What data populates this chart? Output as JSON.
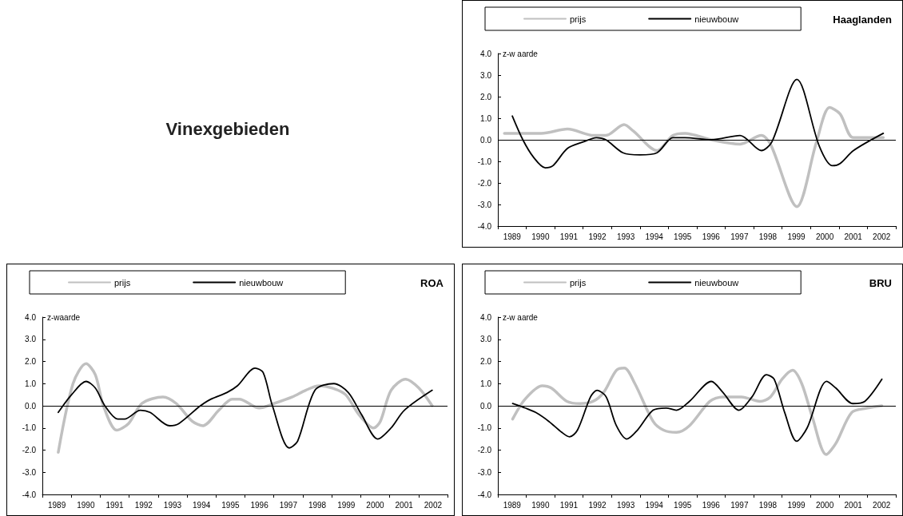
{
  "chart_data": [
    {
      "type": "other",
      "title": "Vinexgebieden"
    },
    {
      "type": "line",
      "title": "Haaglanden",
      "ylabel": "z-w aarde",
      "legend": "top",
      "marker": "none",
      "line_style": "solid",
      "xlim": [
        1989,
        2003
      ],
      "ylim": [
        -4,
        4
      ],
      "xticks": [
        {
          "value": 1989,
          "label": null
        },
        {
          "value": 1989.5,
          "label": "1989"
        },
        {
          "value": 1990,
          "label": null
        },
        {
          "value": 1990.5,
          "label": "1990"
        },
        {
          "value": 1991,
          "label": null
        },
        {
          "value": 1991.5,
          "label": "1991"
        },
        {
          "value": 1992,
          "label": null
        },
        {
          "value": 1992.5,
          "label": "1992"
        },
        {
          "value": 1993,
          "label": null
        },
        {
          "value": 1993.5,
          "label": "1993"
        },
        {
          "value": 1994,
          "label": null
        },
        {
          "value": 1994.5,
          "label": "1994"
        },
        {
          "value": 1995,
          "label": null
        },
        {
          "value": 1995.5,
          "label": "1995"
        },
        {
          "value": 1996,
          "label": null
        },
        {
          "value": 1996.5,
          "label": "1996"
        },
        {
          "value": 1997,
          "label": null
        },
        {
          "value": 1997.5,
          "label": "1997"
        },
        {
          "value": 1998,
          "label": null
        },
        {
          "value": 1998.5,
          "label": "1998"
        },
        {
          "value": 1999,
          "label": null
        },
        {
          "value": 1999.5,
          "label": "1999"
        },
        {
          "value": 2000,
          "label": null
        },
        {
          "value": 2000.5,
          "label": "2000"
        },
        {
          "value": 2001,
          "label": null
        },
        {
          "value": 2001.5,
          "label": "2001"
        },
        {
          "value": 2002,
          "label": null
        },
        {
          "value": 2002.5,
          "label": "2002"
        },
        {
          "value": 2003,
          "label": null
        }
      ],
      "yticks": [
        {
          "value": -4,
          "label": "-4.0"
        },
        {
          "value": -3,
          "label": "-3.0"
        },
        {
          "value": -2,
          "label": "-2.0"
        },
        {
          "value": -1,
          "label": "-1.0"
        },
        {
          "value": 0,
          "label": "0.0"
        },
        {
          "value": 1,
          "label": "1.0"
        },
        {
          "value": 2,
          "label": "2.0"
        },
        {
          "value": 3,
          "label": "3.0"
        },
        {
          "value": 4,
          "label": "4.0"
        }
      ],
      "ref_lines": [
        {
          "axis": "y",
          "value": 0,
          "color": "#000000"
        }
      ],
      "series": [
        {
          "name": "prijs",
          "color": "#c0c0c0",
          "x": [
            1989.23,
            1990.53,
            1991.45,
            1992.38,
            1992.8,
            1993.44,
            1993.77,
            1994.6,
            1995.16,
            1995.58,
            1996.51,
            1997.52,
            1998.27,
            1998.59,
            1999.52,
            2000.21,
            2000.67,
            2001.04,
            2001.51,
            2002.56
          ],
          "values": [
            0.3,
            0.3,
            0.5,
            0.2,
            0.2,
            0.7,
            0.4,
            -0.5,
            0.2,
            0.3,
            0.0,
            -0.2,
            0.2,
            -0.2,
            -3.1,
            -0.1,
            1.5,
            1.2,
            0.1,
            0.1
          ]
        },
        {
          "name": "nieuwbouw",
          "color": "#000000",
          "x": [
            1989.51,
            1989.88,
            1990.25,
            1990.67,
            1990.94,
            1991.45,
            1992.0,
            1992.47,
            1992.8,
            1993.4,
            1994.0,
            1994.6,
            1995.16,
            1995.58,
            1996.51,
            1997.52,
            1998.27,
            1998.64,
            1999.52,
            2000.31,
            2000.77,
            2001.04,
            2001.51,
            2002.56
          ],
          "values": [
            1.1,
            0.0,
            -0.8,
            -1.3,
            -1.2,
            -0.4,
            -0.1,
            0.1,
            0.0,
            -0.6,
            -0.7,
            -0.6,
            0.1,
            0.1,
            0.0,
            0.2,
            -0.5,
            -0.1,
            2.8,
            -0.3,
            -1.2,
            -1.1,
            -0.5,
            0.3
          ]
        }
      ]
    },
    {
      "type": "line",
      "title": "ROA",
      "ylabel": "z-waarde",
      "legend": "top",
      "marker": "none",
      "line_style": "solid",
      "xlim": [
        1989,
        2003
      ],
      "ylim": [
        -4,
        4
      ],
      "xticks": [
        {
          "value": 1989,
          "label": null
        },
        {
          "value": 1989.5,
          "label": "1989"
        },
        {
          "value": 1990,
          "label": null
        },
        {
          "value": 1990.5,
          "label": "1990"
        },
        {
          "value": 1991,
          "label": null
        },
        {
          "value": 1991.5,
          "label": "1991"
        },
        {
          "value": 1992,
          "label": null
        },
        {
          "value": 1992.5,
          "label": "1992"
        },
        {
          "value": 1993,
          "label": null
        },
        {
          "value": 1993.5,
          "label": "1993"
        },
        {
          "value": 1994,
          "label": null
        },
        {
          "value": 1994.5,
          "label": "1994"
        },
        {
          "value": 1995,
          "label": null
        },
        {
          "value": 1995.5,
          "label": "1995"
        },
        {
          "value": 1996,
          "label": null
        },
        {
          "value": 1996.5,
          "label": "1996"
        },
        {
          "value": 1997,
          "label": null
        },
        {
          "value": 1997.5,
          "label": "1997"
        },
        {
          "value": 1998,
          "label": null
        },
        {
          "value": 1998.5,
          "label": "1998"
        },
        {
          "value": 1999,
          "label": null
        },
        {
          "value": 1999.5,
          "label": "1999"
        },
        {
          "value": 2000,
          "label": null
        },
        {
          "value": 2000.5,
          "label": "2000"
        },
        {
          "value": 2001,
          "label": null
        },
        {
          "value": 2001.5,
          "label": "2001"
        },
        {
          "value": 2002,
          "label": null
        },
        {
          "value": 2002.5,
          "label": "2002"
        },
        {
          "value": 2003,
          "label": null
        }
      ],
      "yticks": [
        {
          "value": -4,
          "label": "-4.0"
        },
        {
          "value": -3,
          "label": "-3.0"
        },
        {
          "value": -2,
          "label": "-2.0"
        },
        {
          "value": -1,
          "label": "-1.0"
        },
        {
          "value": 0,
          "label": "0.0"
        },
        {
          "value": 1,
          "label": "1.0"
        },
        {
          "value": 2,
          "label": "2.0"
        },
        {
          "value": 3,
          "label": "3.0"
        },
        {
          "value": 4,
          "label": "4.0"
        }
      ],
      "ref_lines": [
        {
          "axis": "y",
          "value": 0,
          "color": "#000000"
        }
      ],
      "series": [
        {
          "name": "prijs",
          "color": "#c0c0c0",
          "x": [
            1989.55,
            1990.06,
            1990.51,
            1990.83,
            1991.11,
            1991.57,
            1991.98,
            1992.44,
            1993.17,
            1993.63,
            1994.18,
            1994.55,
            1995.1,
            1995.56,
            1995.8,
            1996.49,
            1997.0,
            1997.64,
            1998.1,
            1998.56,
            1999.02,
            1999.48,
            1999.94,
            2000.45,
            2000.68,
            2001.05,
            2001.55,
            2002.01,
            2002.47
          ],
          "values": [
            -2.1,
            1.0,
            1.9,
            1.4,
            0.0,
            -1.1,
            -0.8,
            0.1,
            0.4,
            0.1,
            -0.7,
            -0.9,
            -0.2,
            0.3,
            0.3,
            -0.1,
            0.1,
            0.4,
            0.7,
            0.9,
            0.8,
            0.5,
            -0.4,
            -1.0,
            -0.7,
            0.7,
            1.2,
            0.8,
            0.0
          ]
        },
        {
          "name": "nieuwbouw",
          "color": "#000000",
          "x": [
            1989.55,
            1990.01,
            1990.51,
            1990.83,
            1991.16,
            1991.61,
            1991.84,
            1992.39,
            1992.72,
            1993.4,
            1993.72,
            1994.46,
            1994.83,
            1995.38,
            1995.74,
            1996.35,
            1996.63,
            1996.95,
            1997.53,
            1997.82,
            1998.42,
            1999.07,
            1999.57,
            2000.03,
            2000.59,
            2001.05,
            2001.51,
            2002.47
          ],
          "values": [
            -0.3,
            0.5,
            1.1,
            0.8,
            0.0,
            -0.6,
            -0.6,
            -0.2,
            -0.3,
            -0.9,
            -0.8,
            0.0,
            0.3,
            0.6,
            0.9,
            1.7,
            1.5,
            0.0,
            -1.9,
            -1.6,
            0.7,
            1.0,
            0.6,
            -0.4,
            -1.5,
            -1.0,
            -0.2,
            0.7
          ]
        }
      ]
    },
    {
      "type": "line",
      "title": "BRU",
      "ylabel": "z-w aarde",
      "legend": "top",
      "marker": "none",
      "line_style": "solid",
      "xlim": [
        1989,
        2003
      ],
      "ylim": [
        -4,
        4
      ],
      "xticks": [
        {
          "value": 1989,
          "label": null
        },
        {
          "value": 1989.5,
          "label": "1989"
        },
        {
          "value": 1990,
          "label": null
        },
        {
          "value": 1990.5,
          "label": "1990"
        },
        {
          "value": 1991,
          "label": null
        },
        {
          "value": 1991.5,
          "label": "1991"
        },
        {
          "value": 1992,
          "label": null
        },
        {
          "value": 1992.5,
          "label": "1992"
        },
        {
          "value": 1993,
          "label": null
        },
        {
          "value": 1993.5,
          "label": "1993"
        },
        {
          "value": 1994,
          "label": null
        },
        {
          "value": 1994.5,
          "label": "1994"
        },
        {
          "value": 1995,
          "label": null
        },
        {
          "value": 1995.5,
          "label": "1995"
        },
        {
          "value": 1996,
          "label": null
        },
        {
          "value": 1996.5,
          "label": "1996"
        },
        {
          "value": 1997,
          "label": null
        },
        {
          "value": 1997.5,
          "label": "1997"
        },
        {
          "value": 1998,
          "label": null
        },
        {
          "value": 1998.5,
          "label": "1998"
        },
        {
          "value": 1999,
          "label": null
        },
        {
          "value": 1999.5,
          "label": "1999"
        },
        {
          "value": 2000,
          "label": null
        },
        {
          "value": 2000.5,
          "label": "2000"
        },
        {
          "value": 2001,
          "label": null
        },
        {
          "value": 2001.5,
          "label": "2001"
        },
        {
          "value": 2002,
          "label": null
        },
        {
          "value": 2002.5,
          "label": "2002"
        },
        {
          "value": 2003,
          "label": null
        }
      ],
      "yticks": [
        {
          "value": -4,
          "label": "-4.0"
        },
        {
          "value": -3,
          "label": "-3.0"
        },
        {
          "value": -2,
          "label": "-2.0"
        },
        {
          "value": -1,
          "label": "-1.0"
        },
        {
          "value": 0,
          "label": "0.0"
        },
        {
          "value": 1,
          "label": "1.0"
        },
        {
          "value": 2,
          "label": "2.0"
        },
        {
          "value": 3,
          "label": "3.0"
        },
        {
          "value": 4,
          "label": "4.0"
        }
      ],
      "ref_lines": [
        {
          "axis": "y",
          "value": 0,
          "color": "#000000"
        }
      ],
      "series": [
        {
          "name": "prijs",
          "color": "#c0c0c0",
          "x": [
            1989.52,
            1989.96,
            1990.56,
            1990.88,
            1991.43,
            1991.89,
            1992.35,
            1992.72,
            1993.17,
            1993.45,
            1993.82,
            1994.46,
            1994.83,
            1995.28,
            1995.74,
            1996.46,
            1996.92,
            1997.57,
            1998.22,
            1998.59,
            1999.0,
            1999.37,
            1999.69,
            2000.06,
            2000.55,
            2000.89,
            2001.45,
            2002.0,
            2002.51
          ],
          "values": [
            -0.6,
            0.3,
            0.9,
            0.8,
            0.2,
            0.1,
            0.2,
            0.6,
            1.6,
            1.7,
            1.0,
            -0.7,
            -1.1,
            -1.2,
            -0.9,
            0.2,
            0.4,
            0.4,
            0.2,
            0.4,
            1.2,
            1.6,
            1.0,
            -0.5,
            -2.2,
            -1.7,
            -0.3,
            -0.1,
            0.0
          ]
        },
        {
          "name": "nieuwbouw",
          "color": "#000000",
          "x": [
            1989.52,
            1989.96,
            1990.33,
            1990.79,
            1991.25,
            1991.52,
            1991.8,
            1992.26,
            1992.49,
            1992.81,
            1993.17,
            1993.54,
            1993.91,
            1994.46,
            1994.92,
            1995.28,
            1995.74,
            1996.51,
            1996.92,
            1997.48,
            1997.94,
            1998.45,
            1998.72,
            1999.09,
            1999.51,
            1999.88,
            2000.57,
            2000.89,
            2001.49,
            2001.91,
            2002.51
          ],
          "values": [
            0.1,
            -0.1,
            -0.3,
            -0.7,
            -1.2,
            -1.4,
            -1.1,
            0.4,
            0.7,
            0.4,
            -0.9,
            -1.5,
            -1.1,
            -0.2,
            -0.1,
            -0.2,
            0.2,
            1.1,
            0.6,
            -0.2,
            0.4,
            1.4,
            1.2,
            -0.3,
            -1.6,
            -1.0,
            1.1,
            0.8,
            0.1,
            0.2,
            1.2
          ]
        }
      ]
    }
  ]
}
